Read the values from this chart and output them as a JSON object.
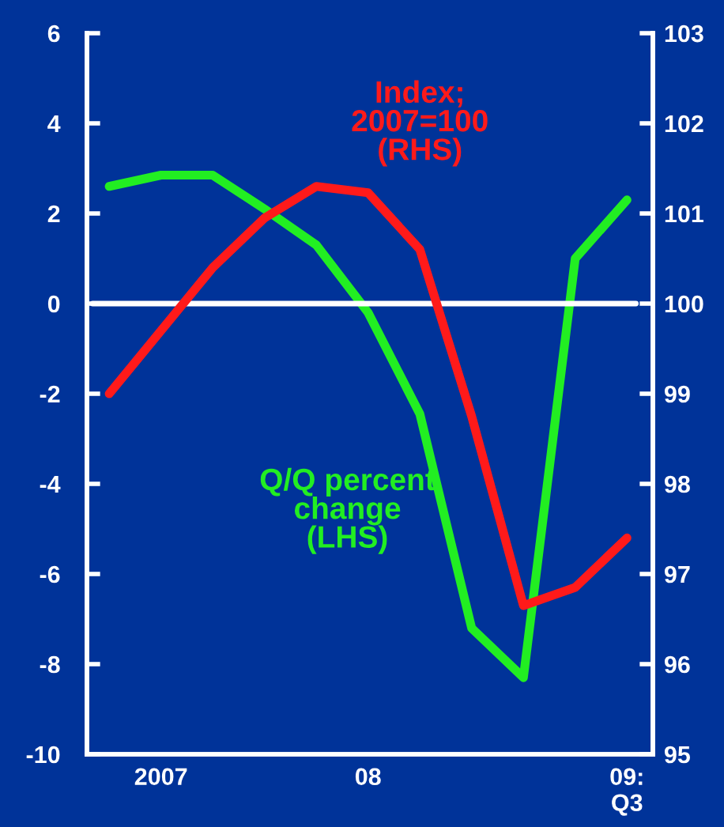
{
  "chart_data": {
    "type": "line",
    "categories": [
      null,
      "2007",
      null,
      null,
      null,
      "08",
      null,
      null,
      null,
      null,
      "09:\nQ3"
    ],
    "ylim": [
      -10,
      6
    ],
    "yticks": [
      -10,
      -8,
      -6,
      -4,
      -2,
      0,
      2,
      4,
      6
    ],
    "y2lim": [
      95,
      103
    ],
    "y2ticks": [
      95,
      96,
      97,
      98,
      99,
      100,
      101,
      102,
      103
    ],
    "series": [
      {
        "name": "Q/Q percent\nchange\n(LHS)",
        "color": "#22ee22",
        "values": [
          2.6,
          2.85,
          2.85,
          2.1,
          1.3,
          -0.2,
          -2.45,
          -7.2,
          -8.3,
          1.0,
          2.3
        ]
      },
      {
        "name": "Index;\n2007=100\n(RHS)",
        "color": "#ff1a1a",
        "axis": "y2",
        "values": [
          99.0,
          99.7,
          100.4,
          100.95,
          101.3,
          101.23,
          100.6,
          98.75,
          96.65,
          96.85,
          97.4
        ]
      }
    ],
    "ref_lines": [
      {
        "axis": "y",
        "value": 0,
        "color": "#ffffff"
      }
    ],
    "grid": false,
    "legend": false,
    "marker": "none",
    "line_style": "solid"
  }
}
